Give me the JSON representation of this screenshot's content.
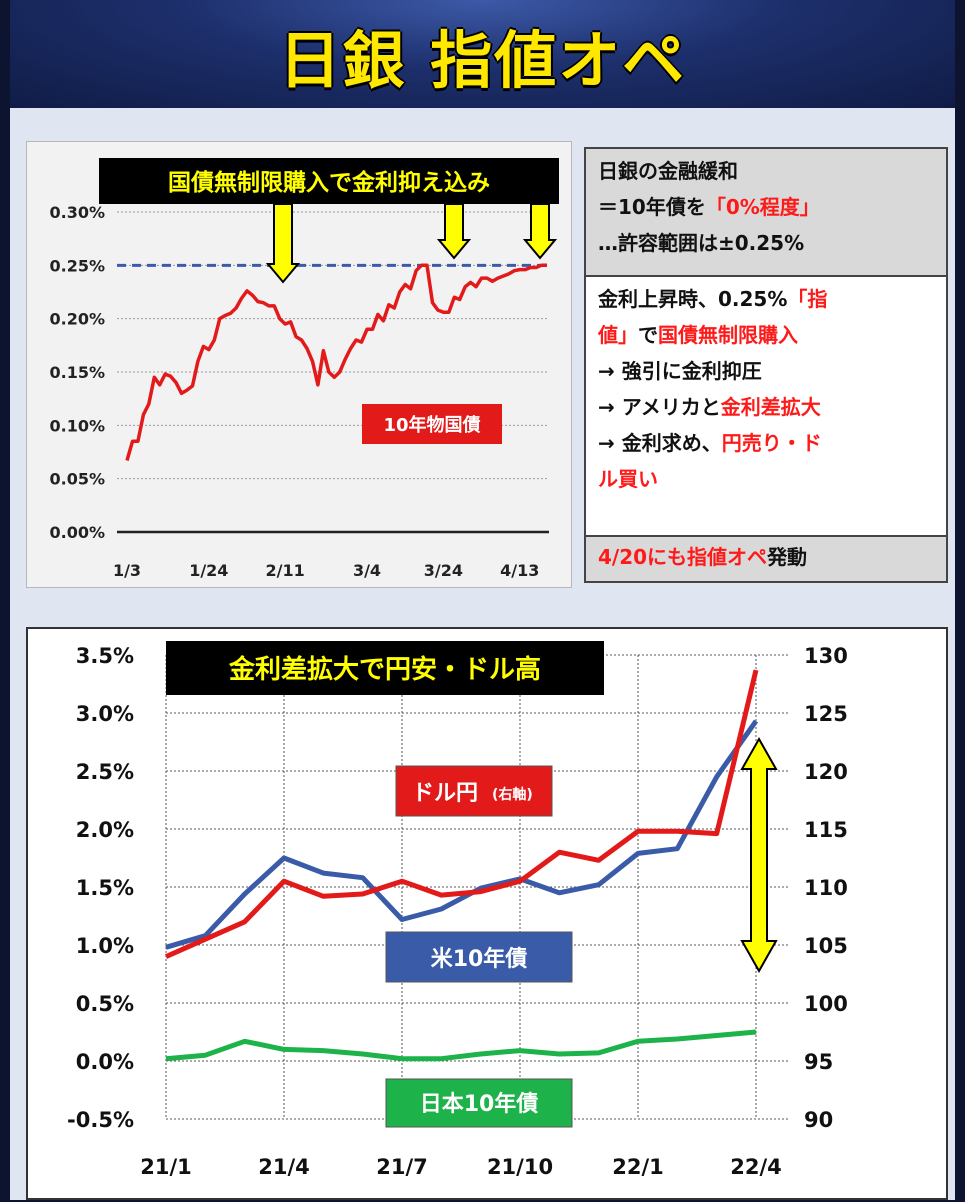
{
  "header": {
    "title": "日銀 指値オペ"
  },
  "top_chart": {
    "banner": "国債無制限購入で金利抑え込み",
    "series_label": "10年物国債"
  },
  "bottom_chart": {
    "banner": "金利差拡大で円安・ドル高",
    "label_usdjpy_main": "ドル円",
    "label_usdjpy_note": "(右軸)",
    "label_us10y": "米10年債",
    "label_jp10y": "日本10年債"
  },
  "info": {
    "box1": {
      "line1": "日銀の金融緩和",
      "line2_pre": "＝10年債を",
      "line2_red": "「0%程度」",
      "line3": "…許容範囲は±0.25%"
    },
    "box2": {
      "l1_pre": "金利上昇時、0.25%",
      "l1_red": "「指",
      "l2_red1": "値」",
      "l2_mid": "で",
      "l2_red2": "国債無制限購入",
      "l3": "→ 強引に金利抑圧",
      "l4_pre": "→ アメリカと",
      "l4_red": "金利差拡大",
      "l5_pre": "→ 金利求め、",
      "l5_red": "円売り・ド",
      "l6_red": "ル買い"
    },
    "box3": {
      "red": "4/20にも指値オペ",
      "post": "発動"
    }
  },
  "colors": {
    "red": "#e31a1a",
    "blue": "#3a5ba8",
    "green": "#1db34a",
    "yellow": "#ffff00",
    "navy": "#101c46"
  },
  "chart_data": [
    {
      "type": "line",
      "title": "国債無制限購入で金利抑え込み",
      "x_ticks": [
        "1/3",
        "1/24",
        "2/11",
        "3/4",
        "3/24",
        "4/13"
      ],
      "y_ticks": [
        "0.00%",
        "0.05%",
        "0.10%",
        "0.15%",
        "0.20%",
        "0.25%",
        "0.30%"
      ],
      "ylim": [
        0,
        0.3
      ],
      "reference_line": 0.25,
      "series": [
        {
          "name": "10年物国債",
          "x": [
            "1/3",
            "1/4",
            "1/5",
            "1/6",
            "1/7",
            "1/10",
            "1/11",
            "1/12",
            "1/13",
            "1/14",
            "1/17",
            "1/18",
            "1/19",
            "1/20",
            "1/21",
            "1/24",
            "1/25",
            "1/26",
            "1/27",
            "1/28",
            "1/31",
            "2/1",
            "2/2",
            "2/3",
            "2/4",
            "2/7",
            "2/8",
            "2/9",
            "2/10",
            "2/11",
            "2/14",
            "2/15",
            "2/16",
            "2/17",
            "2/18",
            "2/21",
            "2/22",
            "2/23",
            "2/24",
            "2/25",
            "2/28",
            "3/1",
            "3/2",
            "3/3",
            "3/4",
            "3/7",
            "3/8",
            "3/9",
            "3/10",
            "3/11",
            "3/14",
            "3/15",
            "3/16",
            "3/17",
            "3/18",
            "3/21",
            "3/22",
            "3/23",
            "3/24",
            "3/25",
            "3/28",
            "3/29",
            "3/30",
            "3/31",
            "4/1",
            "4/4",
            "4/5",
            "4/6",
            "4/7",
            "4/8",
            "4/11",
            "4/12",
            "4/13",
            "4/14",
            "4/15",
            "4/18",
            "4/19",
            "4/20"
          ],
          "values": [
            0.067,
            0.085,
            0.085,
            0.11,
            0.12,
            0.145,
            0.138,
            0.148,
            0.146,
            0.14,
            0.13,
            0.133,
            0.137,
            0.16,
            0.174,
            0.171,
            0.18,
            0.2,
            0.203,
            0.205,
            0.21,
            0.219,
            0.226,
            0.222,
            0.216,
            0.215,
            0.212,
            0.212,
            0.2,
            0.195,
            0.197,
            0.183,
            0.18,
            0.172,
            0.16,
            0.138,
            0.17,
            0.15,
            0.145,
            0.15,
            0.162,
            0.172,
            0.18,
            0.178,
            0.19,
            0.19,
            0.204,
            0.198,
            0.213,
            0.21,
            0.225,
            0.232,
            0.228,
            0.245,
            0.25,
            0.25,
            0.215,
            0.208,
            0.206,
            0.206,
            0.22,
            0.218,
            0.23,
            0.234,
            0.23,
            0.238,
            0.238,
            0.235,
            0.238,
            0.24,
            0.242,
            0.245,
            0.246,
            0.246,
            0.248,
            0.248,
            0.25,
            0.25
          ]
        }
      ]
    },
    {
      "type": "line",
      "title": "金利差拡大で円安・ドル高",
      "x_ticks": [
        "21/1",
        "21/4",
        "21/7",
        "21/10",
        "22/1",
        "22/4"
      ],
      "y_left_ticks": [
        "3.5%",
        "3.0%",
        "2.5%",
        "2.0%",
        "1.5%",
        "1.0%",
        "0.5%",
        "0.0%",
        "-0.5%"
      ],
      "y_right_ticks": [
        "130",
        "125",
        "120",
        "115",
        "110",
        "105",
        "100",
        "95",
        "90"
      ],
      "ylim_left": [
        -0.5,
        3.5
      ],
      "ylim_right": [
        90,
        130
      ],
      "x": [
        "21/1",
        "21/2",
        "21/3",
        "21/4",
        "21/5",
        "21/6",
        "21/7",
        "21/8",
        "21/9",
        "21/10",
        "21/11",
        "21/12",
        "22/1",
        "22/2",
        "22/3",
        "22/4"
      ],
      "series": [
        {
          "name": "ドル円",
          "axis": "right",
          "values": [
            104.0,
            105.5,
            107.0,
            110.5,
            109.2,
            109.4,
            110.5,
            109.3,
            109.6,
            110.5,
            113.0,
            112.3,
            114.8,
            114.8,
            114.6,
            128.7
          ]
        },
        {
          "name": "米10年債",
          "axis": "left",
          "values": [
            0.98,
            1.08,
            1.44,
            1.75,
            1.62,
            1.58,
            1.22,
            1.31,
            1.49,
            1.57,
            1.45,
            1.52,
            1.79,
            1.83,
            2.45,
            2.93
          ]
        },
        {
          "name": "日本10年債",
          "axis": "left",
          "values": [
            0.02,
            0.05,
            0.17,
            0.1,
            0.09,
            0.06,
            0.02,
            0.02,
            0.06,
            0.09,
            0.06,
            0.07,
            0.17,
            0.19,
            0.22,
            0.25
          ]
        }
      ]
    }
  ]
}
